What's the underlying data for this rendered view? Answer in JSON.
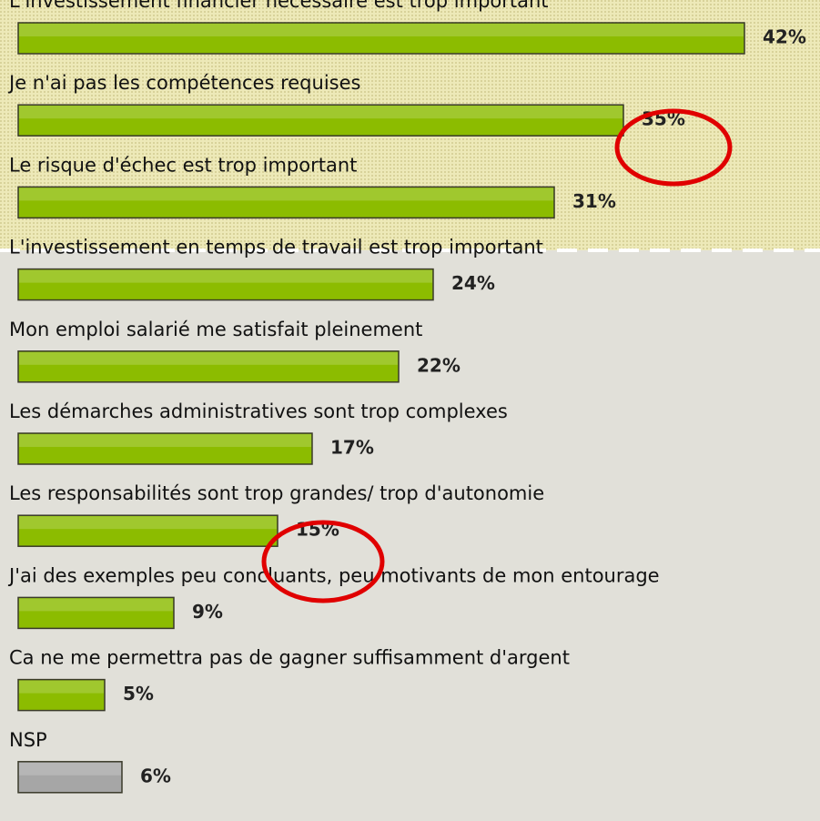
{
  "chart_data": {
    "type": "bar",
    "categories": [
      "L'investissement financier nécessaire est trop important",
      "Je n'ai pas les compétences requises",
      "Le risque d'échec est trop important",
      "L'investissement en temps de travail est trop important",
      "Mon emploi salarié me satisfait pleinement",
      "Les démarches administratives sont trop complexes",
      "Les responsabilités sont trop grandes/ trop d'autonomie",
      "J'ai des exemples peu concluants, peu motivants de mon entourage",
      "Ca ne me permettra pas de gagner suffisamment d'argent",
      "NSP"
    ],
    "values": [
      42,
      35,
      31,
      24,
      22,
      17,
      15,
      9,
      5,
      6
    ],
    "value_labels": [
      "42%",
      "35%",
      "31%",
      "24%",
      "22%",
      "17%",
      "15%",
      "9%",
      "5%",
      "6%"
    ],
    "colors": [
      "#8cbc00",
      "#8cbc00",
      "#8cbc00",
      "#8cbc00",
      "#8cbc00",
      "#8cbc00",
      "#8cbc00",
      "#8cbc00",
      "#8cbc00",
      "#a6a6a6"
    ]
  }
}
